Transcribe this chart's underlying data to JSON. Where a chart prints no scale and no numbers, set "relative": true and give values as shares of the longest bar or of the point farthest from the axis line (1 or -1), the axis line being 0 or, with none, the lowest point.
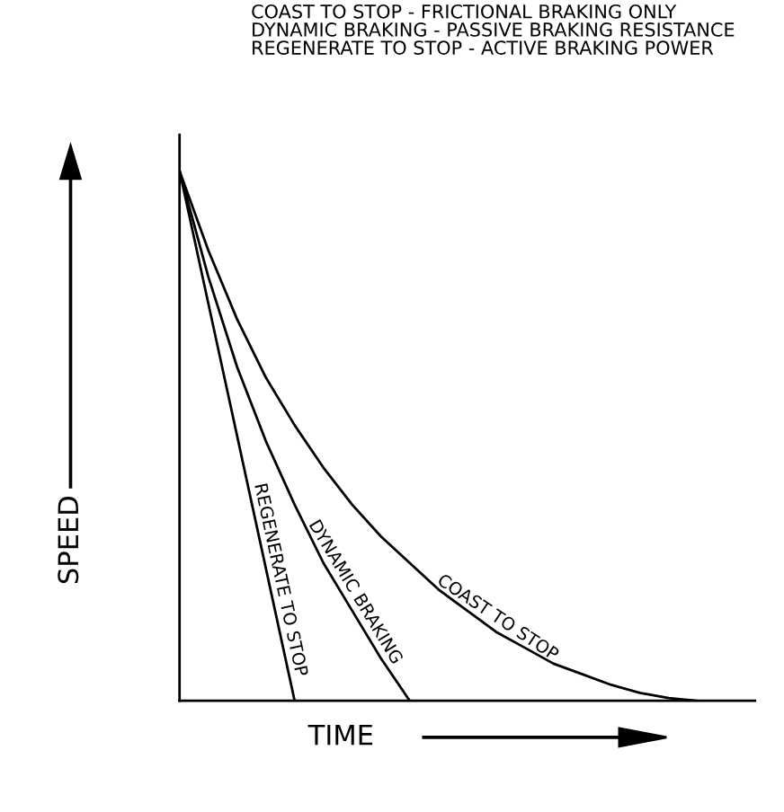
{
  "chart_data": {
    "type": "line",
    "relative": true,
    "title": "COAST TO STOP - FRICTIONAL BRAKING ONLY\nDYNAMIC BRAKING - PASSIVE BRAKING RESISTANCE\nREGENERATE TO STOP - ACTIVE BRAKING POWER",
    "xlabel": "TIME",
    "ylabel": "SPEED",
    "categories": [
      null,
      null,
      null,
      null,
      null,
      null,
      null,
      null,
      null,
      null,
      null,
      null,
      null,
      null,
      null,
      null,
      null,
      null,
      null,
      null,
      null
    ],
    "legend": false,
    "marker": "none",
    "line_style": "solid",
    "series": [
      {
        "name": "REGENERATE TO STOP",
        "color": "#000000",
        "values": [
          1,
          0.75,
          0.5,
          0.25,
          0,
          null,
          null,
          null,
          null,
          null,
          null,
          null,
          null,
          null,
          null,
          null,
          null,
          null,
          null,
          null,
          null
        ]
      },
      {
        "name": "DYNAMIC BRAKING",
        "color": "#000000",
        "values": [
          1,
          0.8,
          0.63,
          0.49,
          0.37,
          0.26,
          0.17,
          0.08,
          0,
          null,
          null,
          null,
          null,
          null,
          null,
          null,
          null,
          null,
          null,
          null,
          null
        ]
      },
      {
        "name": "COAST TO STOP",
        "color": "#000000",
        "values": [
          1,
          0.85,
          0.72,
          0.61,
          0.52,
          0.44,
          0.37,
          0.31,
          0.26,
          0.21,
          0.17,
          0.13,
          0.1,
          0.07,
          0.05,
          0.03,
          0.015,
          0.005,
          0,
          null,
          null
        ]
      }
    ]
  }
}
